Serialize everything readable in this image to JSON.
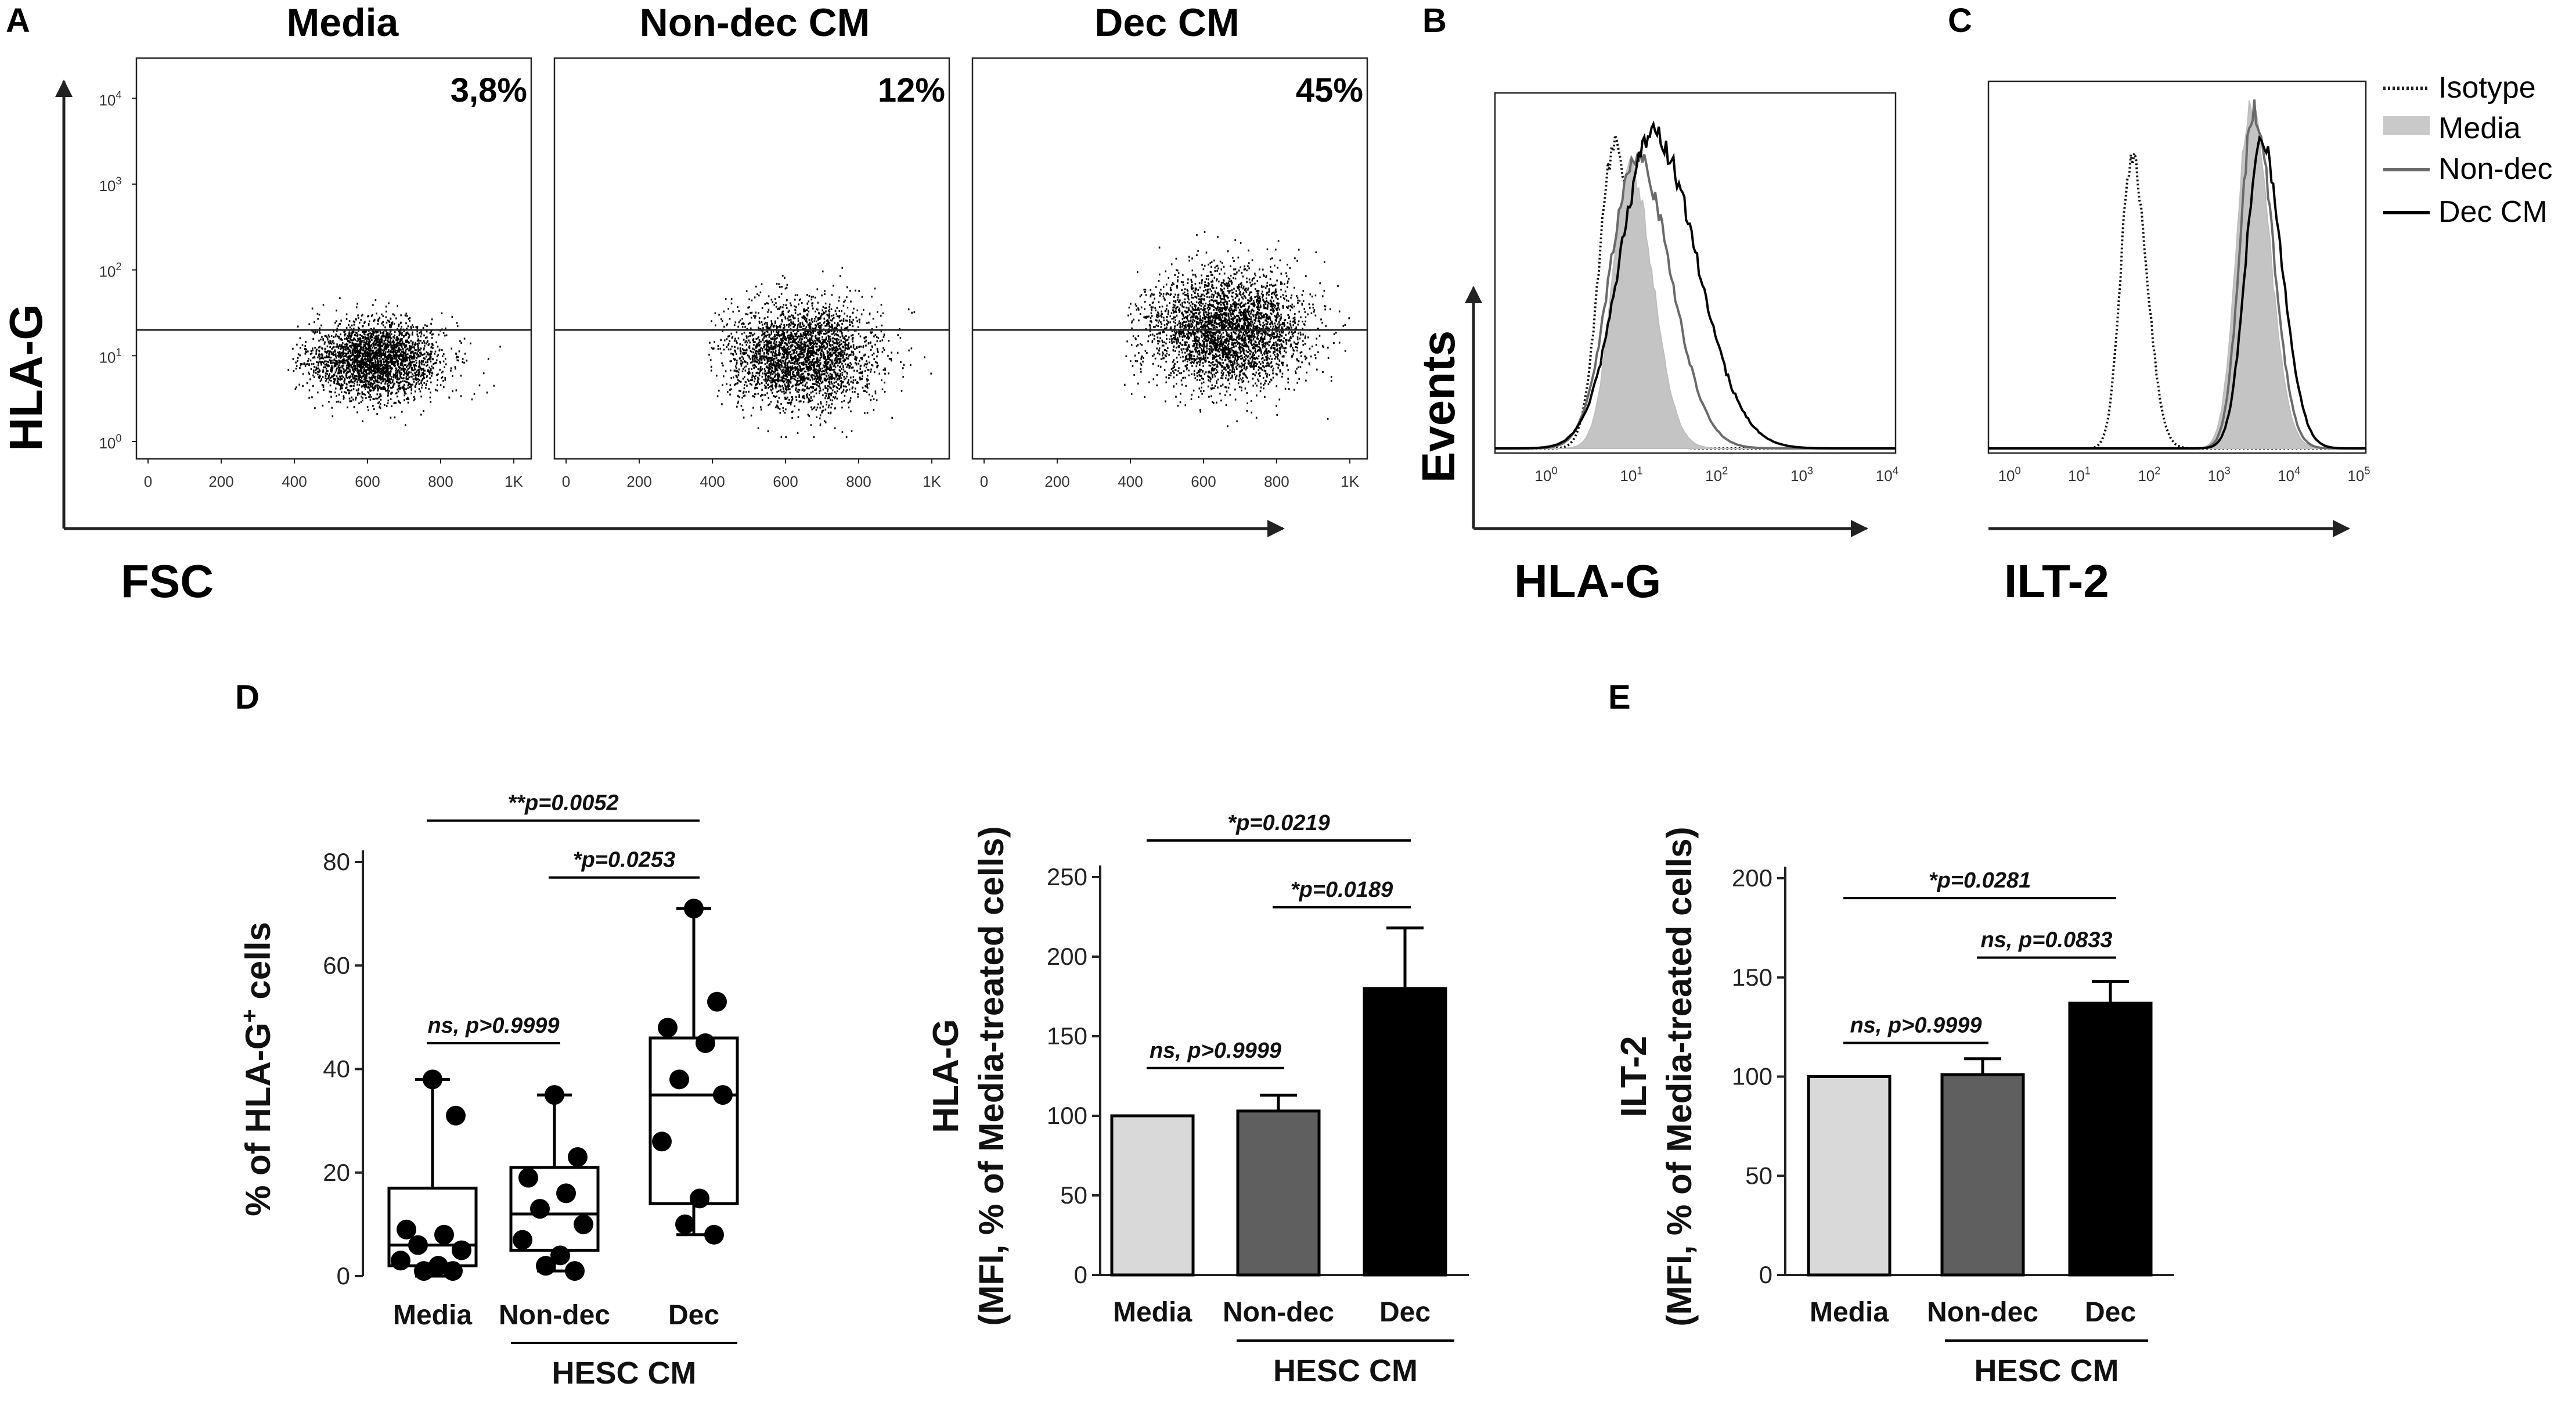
{
  "panels": {
    "A": {
      "letter": "A",
      "ylabel": "HLA-G",
      "xlabel": "FSC",
      "x_ticks": [
        "0",
        "200",
        "400",
        "600",
        "800",
        "1K"
      ],
      "y_ticks": [
        "10^0",
        "10^1",
        "10^2",
        "10^3",
        "10^4"
      ],
      "gate_level": "10^1.3",
      "plots": [
        {
          "title": "Media",
          "percent": "3,8%",
          "cloud_center": [
            620,
            0.95
          ],
          "spread": [
            90,
            0.22
          ],
          "n": 2800
        },
        {
          "title": "Non-dec CM",
          "percent": "12%",
          "cloud_center": [
            640,
            1.0
          ],
          "spread": [
            100,
            0.3
          ],
          "n": 3000
        },
        {
          "title": "Dec CM",
          "percent": "45%",
          "cloud_center": [
            660,
            1.3
          ],
          "spread": [
            110,
            0.33
          ],
          "n": 3400
        }
      ]
    },
    "B": {
      "letter": "B",
      "ylabel": "Events",
      "xlabel": "HLA-G",
      "x_ticks": [
        "10^0",
        "10^1",
        "10^2",
        "10^3",
        "10^4"
      ]
    },
    "C": {
      "letter": "C",
      "xlabel": "ILT-2",
      "x_ticks": [
        "10^0",
        "10^1",
        "10^2",
        "10^3",
        "10^4",
        "10^5"
      ]
    },
    "legend": {
      "items": [
        "Isotype",
        "Media",
        "Non-dec",
        "Dec CM"
      ]
    },
    "D": {
      "letter": "D",
      "group_label": "HESC CM"
    },
    "E": {
      "letter": "E",
      "group_label": "HESC CM"
    }
  },
  "chart_data": [
    {
      "type": "boxplot",
      "panel": "D-left",
      "ylabel": "% of HLA-G+ cells",
      "ylim": [
        0,
        80
      ],
      "yticks": [
        0,
        20,
        40,
        60,
        80
      ],
      "categories": [
        "Media",
        "Non-dec",
        "Dec"
      ],
      "group_label": "HESC CM",
      "boxes": [
        {
          "min": 0,
          "q1": 2,
          "median": 6,
          "q3": 17,
          "max": 38
        },
        {
          "min": 1,
          "q1": 5,
          "median": 12,
          "q3": 21,
          "max": 35
        },
        {
          "min": 8,
          "q1": 14,
          "median": 35,
          "q3": 46,
          "max": 71
        }
      ],
      "points": [
        [
          38,
          31,
          9,
          8,
          6,
          5,
          3,
          2,
          1,
          1
        ],
        [
          35,
          23,
          19,
          16,
          13,
          10,
          7,
          4,
          2,
          1
        ],
        [
          71,
          53,
          48,
          45,
          38,
          35,
          26,
          15,
          10,
          8
        ]
      ],
      "annotations": [
        {
          "text": "ns, p>0.9999",
          "from": 0,
          "to": 1,
          "y": 45
        },
        {
          "text": "*p=0.0253",
          "from": 1,
          "to": 2,
          "y": 77
        },
        {
          "text": "**p=0.0052",
          "from": 0,
          "to": 2,
          "y": 88
        }
      ]
    },
    {
      "type": "bar",
      "panel": "D-right",
      "ylabel_line1": "HLA-G",
      "ylabel_line2": "(MFI, % of Media-treated cells)",
      "ylim": [
        0,
        250
      ],
      "yticks": [
        0,
        50,
        100,
        150,
        200,
        250
      ],
      "categories": [
        "Media",
        "Non-dec",
        "Dec"
      ],
      "values": [
        100,
        103,
        180
      ],
      "errors": [
        0,
        10,
        38
      ],
      "colors": [
        "#d9d9d9",
        "#5f5f5f",
        "#000000"
      ],
      "group_label": "HESC CM",
      "annotations": [
        {
          "text": "ns, p>0.9999",
          "from": 0,
          "to": 1,
          "y": 130
        },
        {
          "text": "*p=0.0189",
          "from": 1,
          "to": 2,
          "y": 231
        },
        {
          "text": "*p=0.0219",
          "from": 0,
          "to": 2,
          "y": 273
        }
      ]
    },
    {
      "type": "bar",
      "panel": "E",
      "ylabel_line1": "ILT-2",
      "ylabel_line2": "(MFI, % of Media-treated cells)",
      "ylim": [
        0,
        200
      ],
      "yticks": [
        0,
        50,
        100,
        150,
        200
      ],
      "categories": [
        "Media",
        "Non-dec",
        "Dec"
      ],
      "values": [
        100,
        101,
        137
      ],
      "errors": [
        0,
        8,
        11
      ],
      "colors": [
        "#d9d9d9",
        "#5f5f5f",
        "#000000"
      ],
      "group_label": "HESC CM",
      "annotations": [
        {
          "text": "ns, p>0.9999",
          "from": 0,
          "to": 1,
          "y": 117
        },
        {
          "text": "ns, p=0.0833",
          "from": 1,
          "to": 2,
          "y": 160
        },
        {
          "text": "*p=0.0281",
          "from": 0,
          "to": 2,
          "y": 190
        }
      ]
    },
    {
      "type": "histogram",
      "panel": "B",
      "x_log_range": [
        -0.6,
        4.1
      ],
      "series": [
        {
          "name": "Isotype",
          "style": "dotted",
          "peak_log": 0.8,
          "width": 0.18,
          "height": 0.88
        },
        {
          "name": "Media",
          "style": "filled",
          "peak_log": 0.98,
          "width": 0.2,
          "height": 0.82
        },
        {
          "name": "Non-dec",
          "style": "gray",
          "peak_log": 1.05,
          "width": 0.3,
          "height": 0.86
        },
        {
          "name": "Dec CM",
          "style": "black",
          "peak_log": 1.25,
          "width": 0.38,
          "height": 0.92
        }
      ]
    },
    {
      "type": "histogram",
      "panel": "C",
      "x_log_range": [
        -0.3,
        5.1
      ],
      "series": [
        {
          "name": "Isotype",
          "style": "dotted",
          "peak_log": 1.75,
          "width": 0.16,
          "height": 0.82
        },
        {
          "name": "Media",
          "style": "filled",
          "peak_log": 3.45,
          "width": 0.2,
          "height": 0.96
        },
        {
          "name": "Non-dec",
          "style": "gray",
          "peak_log": 3.5,
          "width": 0.2,
          "height": 0.95
        },
        {
          "name": "Dec CM",
          "style": "black",
          "peak_log": 3.6,
          "width": 0.22,
          "height": 0.88
        }
      ]
    }
  ]
}
